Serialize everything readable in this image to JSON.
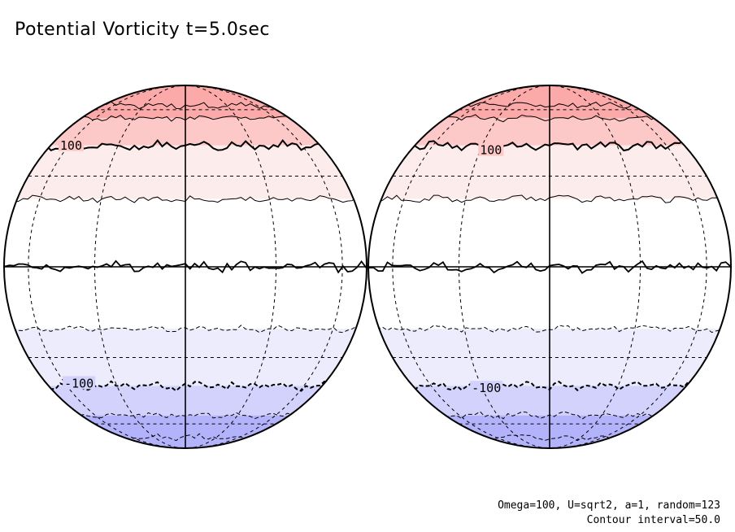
{
  "title": "Potential Vorticity t=5.0sec",
  "caption": {
    "params": "Omega=100, U=sqrt2, a=1, random=123",
    "contour": "Contour interval=50.0"
  },
  "chart_data": {
    "type": "heatmap",
    "projection": "orthographic (two hemispheres)",
    "title": "Potential Vorticity t=5.0sec",
    "contour_interval": 50.0,
    "colors": {
      "band_pos_150": "#fdc8c8",
      "band_pos_200": "#fca9a9",
      "band_pos_50": "#fdecec",
      "band_neutral": "#ffffff",
      "band_neg_50": "#ececfd",
      "band_neg_100": "#d2d2fc",
      "band_neg_150": "#b3b3fb",
      "line": "#000000"
    },
    "levels_pv": [
      200,
      150,
      100,
      50,
      0,
      -50,
      -100,
      -150,
      -200
    ],
    "level_latitudes_deg": [
      63,
      55,
      42,
      22,
      0,
      -20,
      -41,
      -55,
      -70
    ],
    "panels": [
      {
        "name": "left-hemisphere",
        "labels": [
          {
            "text": "100",
            "lat": 42,
            "lon": -58
          },
          {
            "text": "-100",
            "lat": -40,
            "lon": -50
          }
        ]
      },
      {
        "name": "right-hemisphere",
        "labels": [
          {
            "text": "100",
            "lat": 40,
            "lon": -25
          },
          {
            "text": "-100",
            "lat": -42,
            "lon": -28
          }
        ]
      }
    ]
  }
}
